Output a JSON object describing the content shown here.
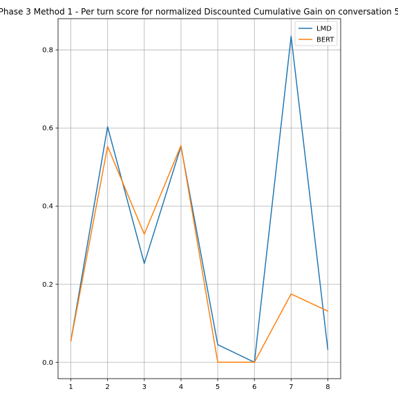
{
  "chart_data": {
    "type": "line",
    "title": "Phase 3 Method 1 - Per turn score for normalized Discounted Cumulative Gain on conversation 5",
    "xlabel": "",
    "ylabel": "",
    "x": [
      1,
      2,
      3,
      4,
      5,
      6,
      7,
      8
    ],
    "xticks": [
      "1",
      "2",
      "3",
      "4",
      "5",
      "6",
      "7",
      "8"
    ],
    "yticks": [
      "0.0",
      "0.2",
      "0.4",
      "0.6",
      "0.8"
    ],
    "xlim": [
      0.65,
      8.35
    ],
    "ylim": [
      -0.042,
      0.88
    ],
    "grid": true,
    "legend_position": "top-right",
    "series": [
      {
        "name": "LMD",
        "color": "#1f77b4",
        "values": [
          0.055,
          0.603,
          0.253,
          0.553,
          0.045,
          0.0,
          0.835,
          0.033
        ]
      },
      {
        "name": "BERT",
        "color": "#ff7f0e",
        "values": [
          0.055,
          0.553,
          0.328,
          0.555,
          0.0,
          0.0,
          0.175,
          0.131
        ]
      }
    ]
  }
}
